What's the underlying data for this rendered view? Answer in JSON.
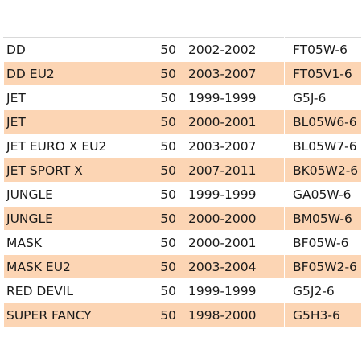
{
  "table": {
    "rows": [
      {
        "model": "DD",
        "cc": "50",
        "years": "2002-2002",
        "part": "FT05W-6"
      },
      {
        "model": "DD EU2",
        "cc": "50",
        "years": "2003-2007",
        "part": "FT05V1-6"
      },
      {
        "model": "JET",
        "cc": "50",
        "years": "1999-1999",
        "part": "G5J-6"
      },
      {
        "model": "JET",
        "cc": "50",
        "years": "2000-2001",
        "part": "BL05W6-6"
      },
      {
        "model": "JET EURO X EU2",
        "cc": "50",
        "years": "2003-2007",
        "part": "BL05W7-6"
      },
      {
        "model": "JET SPORT X",
        "cc": "50",
        "years": "2007-2011",
        "part": "BK05W2-6"
      },
      {
        "model": "JUNGLE",
        "cc": "50",
        "years": "1999-1999",
        "part": "GA05W-6"
      },
      {
        "model": "JUNGLE",
        "cc": "50",
        "years": "2000-2000",
        "part": "BM05W-6"
      },
      {
        "model": "MASK",
        "cc": "50",
        "years": "2000-2001",
        "part": "BF05W-6"
      },
      {
        "model": "MASK EU2",
        "cc": "50",
        "years": "2003-2004",
        "part": "BF05W2-6"
      },
      {
        "model": "RED DEVIL",
        "cc": "50",
        "years": "1999-1999",
        "part": "G5J2-6"
      },
      {
        "model": "SUPER FANCY",
        "cc": "50",
        "years": "1998-2000",
        "part": "G5H3-6"
      }
    ]
  },
  "colors": {
    "row_alt": "#fcd5b4",
    "row_base": "#ffffff"
  }
}
